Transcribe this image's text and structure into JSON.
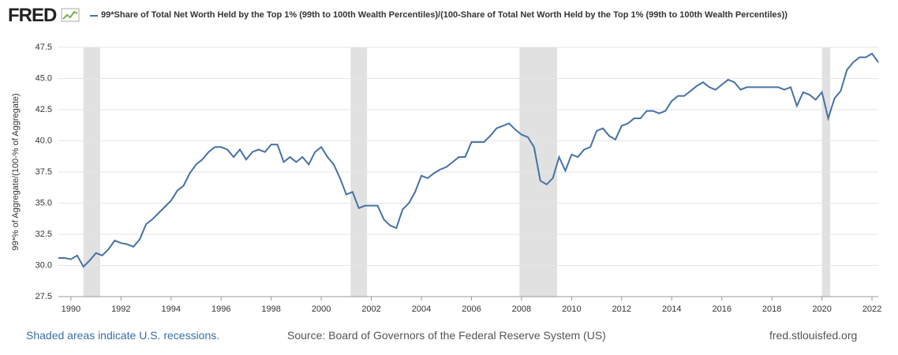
{
  "brand": "FRED",
  "chart_data": {
    "type": "line",
    "y_label": "99*% of Aggregate/(100-% of Aggregate)",
    "footer_left": "Shaded areas indicate U.S. recessions.",
    "source": "Source: Board of Governors of the Federal Reserve System (US)",
    "footer_right": "fred.stlouisfed.org",
    "x": [
      1989.5,
      1989.75,
      1990,
      1990.25,
      1990.5,
      1990.75,
      1991,
      1991.25,
      1991.5,
      1991.75,
      1992,
      1992.25,
      1992.5,
      1992.75,
      1993,
      1993.25,
      1993.5,
      1993.75,
      1994,
      1994.25,
      1994.5,
      1994.75,
      1995,
      1995.25,
      1995.5,
      1995.75,
      1996,
      1996.25,
      1996.5,
      1996.75,
      1997,
      1997.25,
      1997.5,
      1997.75,
      1998,
      1998.25,
      1998.5,
      1998.75,
      1999,
      1999.25,
      1999.5,
      1999.75,
      2000,
      2000.25,
      2000.5,
      2000.75,
      2001,
      2001.25,
      2001.5,
      2001.75,
      2002,
      2002.25,
      2002.5,
      2002.75,
      2003,
      2003.25,
      2003.5,
      2003.75,
      2004,
      2004.25,
      2004.5,
      2004.75,
      2005,
      2005.25,
      2005.5,
      2005.75,
      2006,
      2006.25,
      2006.5,
      2006.75,
      2007,
      2007.25,
      2007.5,
      2007.75,
      2008,
      2008.25,
      2008.5,
      2008.75,
      2009,
      2009.25,
      2009.5,
      2009.75,
      2010,
      2010.25,
      2010.5,
      2010.75,
      2011,
      2011.25,
      2011.5,
      2011.75,
      2012,
      2012.25,
      2012.5,
      2012.75,
      2013,
      2013.25,
      2013.5,
      2013.75,
      2014,
      2014.25,
      2014.5,
      2014.75,
      2015,
      2015.25,
      2015.5,
      2015.75,
      2016,
      2016.25,
      2016.5,
      2016.75,
      2017,
      2017.25,
      2017.5,
      2017.75,
      2018,
      2018.25,
      2018.5,
      2018.75,
      2019,
      2019.25,
      2019.5,
      2019.75,
      2020,
      2020.25,
      2020.5,
      2020.75,
      2021,
      2021.25,
      2021.5,
      2021.75,
      2022,
      2022.25
    ],
    "series": [
      {
        "name": "99*Share of Total Net Worth Held by the Top 1% (99th to 100th Wealth Percentiles)/(100-Share of Total Net Worth Held by the Top 1% (99th to 100th Wealth Percentiles))",
        "color": "#4572a7",
        "values": [
          30.6,
          30.6,
          30.5,
          30.8,
          29.9,
          30.4,
          31.0,
          30.8,
          31.3,
          32.0,
          31.8,
          31.7,
          31.5,
          32.1,
          33.3,
          33.7,
          34.2,
          34.7,
          35.2,
          36.0,
          36.4,
          37.4,
          38.1,
          38.5,
          39.1,
          39.5,
          39.5,
          39.3,
          38.7,
          39.3,
          38.5,
          39.1,
          39.3,
          39.1,
          39.7,
          39.7,
          38.3,
          38.7,
          38.3,
          38.7,
          38.1,
          39.1,
          39.5,
          38.7,
          38.1,
          37.0,
          35.7,
          35.9,
          34.6,
          34.8,
          34.8,
          34.8,
          33.7,
          33.2,
          33.0,
          34.5,
          35.0,
          35.9,
          37.2,
          37.0,
          37.4,
          37.7,
          37.9,
          38.3,
          38.7,
          38.7,
          39.9,
          39.9,
          39.9,
          40.4,
          41.0,
          41.2,
          41.4,
          40.9,
          40.5,
          40.3,
          39.5,
          36.8,
          36.5,
          37.0,
          38.7,
          37.6,
          38.9,
          38.7,
          39.3,
          39.5,
          40.8,
          41.0,
          40.4,
          40.1,
          41.2,
          41.4,
          41.8,
          41.8,
          42.4,
          42.4,
          42.2,
          42.4,
          43.2,
          43.6,
          43.6,
          44.0,
          44.4,
          44.7,
          44.3,
          44.1,
          44.5,
          44.9,
          44.7,
          44.1,
          44.3,
          44.3,
          44.3,
          44.3,
          44.3,
          44.3,
          44.1,
          44.3,
          42.8,
          43.9,
          43.7,
          43.3,
          43.9,
          41.8,
          43.4,
          44.0,
          45.7,
          46.3,
          46.7,
          46.7,
          47.0,
          46.3
        ]
      }
    ],
    "recessions": [
      [
        1990.5,
        1991.17
      ],
      [
        2001.17,
        2001.83
      ],
      [
        2007.92,
        2009.42
      ],
      [
        2020.0,
        2020.33
      ]
    ],
    "recession_color": "#e1e1e1",
    "xlim": [
      1989.5,
      2022.25
    ],
    "xticks": [
      1990,
      1992,
      1994,
      1996,
      1998,
      2000,
      2002,
      2004,
      2006,
      2008,
      2010,
      2012,
      2014,
      2016,
      2018,
      2020,
      2022
    ],
    "ylim": [
      27.5,
      47.5
    ],
    "yticks": [
      27.5,
      {
        "value": 30,
        "label": "30.0"
      },
      32.5,
      {
        "value": 35,
        "label": "35.0"
      },
      37.5,
      {
        "value": 40,
        "label": "40.0"
      },
      42.5,
      {
        "value": 45,
        "label": "45.0"
      },
      47.5
    ],
    "grid": true
  }
}
